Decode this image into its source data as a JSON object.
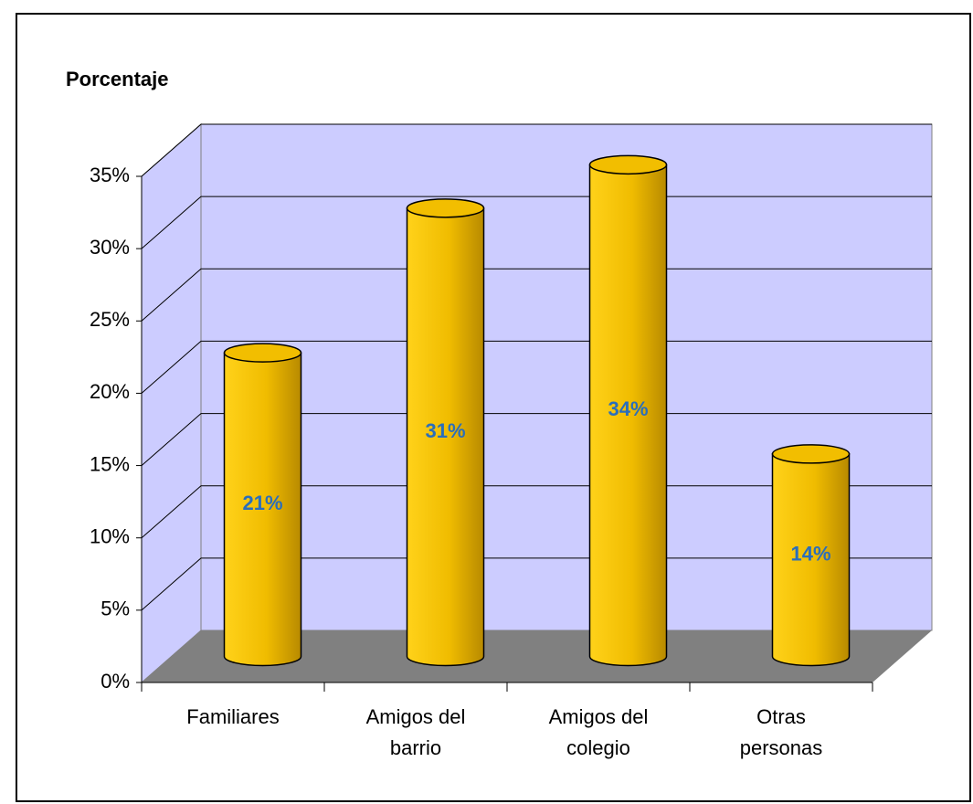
{
  "chart_data": {
    "type": "bar3d",
    "title": "Porcentaje",
    "categories": [
      "Familiares",
      "Amigos del barrio",
      "Amigos del colegio",
      "Otras personas"
    ],
    "values": [
      21,
      31,
      34,
      14
    ],
    "value_labels": [
      "21%",
      "31%",
      "34%",
      "14%"
    ],
    "color": "#f2be00",
    "label_color": "#2a6ebb",
    "wall_color": "#ccccff",
    "floor_color": "#808080",
    "ylim": [
      0,
      35
    ],
    "yticks": [
      {
        "value": 0,
        "label": "0%"
      },
      {
        "value": 5,
        "label": "5%"
      },
      {
        "value": 10,
        "label": "10%"
      },
      {
        "value": 15,
        "label": "15%"
      },
      {
        "value": 20,
        "label": "20%"
      },
      {
        "value": 25,
        "label": "25%"
      },
      {
        "value": 30,
        "label": "30%"
      },
      {
        "value": 35,
        "label": "35%"
      }
    ],
    "grid": true
  }
}
